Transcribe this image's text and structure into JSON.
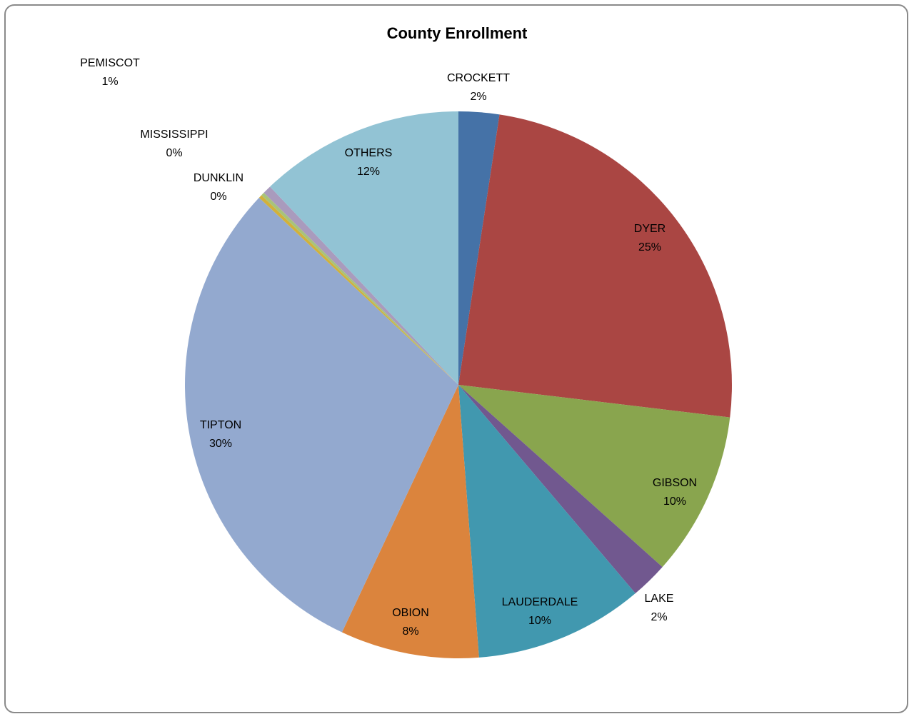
{
  "chart_data": {
    "type": "pie",
    "title": "County Enrollment",
    "slices": [
      {
        "label": "CROCKETT",
        "percent_label": "2%",
        "value": 2.4,
        "color": "#4572A7"
      },
      {
        "label": "DYER",
        "percent_label": "25%",
        "value": 24.5,
        "color": "#AA4643"
      },
      {
        "label": "GIBSON",
        "percent_label": "10%",
        "value": 9.7,
        "color": "#89A54E"
      },
      {
        "label": "LAKE",
        "percent_label": "2%",
        "value": 2.2,
        "color": "#71588F"
      },
      {
        "label": "LAUDERDALE",
        "percent_label": "10%",
        "value": 10.0,
        "color": "#4198AF"
      },
      {
        "label": "OBION",
        "percent_label": "8%",
        "value": 8.2,
        "color": "#DB843D"
      },
      {
        "label": "TIPTON",
        "percent_label": "30%",
        "value": 30.0,
        "color": "#93A9CF"
      },
      {
        "label": "DUNKLIN",
        "percent_label": "0%",
        "value": 0.2,
        "color": "#D1B13B"
      },
      {
        "label": "MISSISSIPPI",
        "percent_label": "0%",
        "value": 0.2,
        "color": "#A8C37A"
      },
      {
        "label": "PEMISCOT",
        "percent_label": "1%",
        "value": 0.5,
        "color": "#A99BBD"
      },
      {
        "label": "OTHERS",
        "percent_label": "12%",
        "value": 12.1,
        "color": "#92C3D4"
      }
    ]
  }
}
